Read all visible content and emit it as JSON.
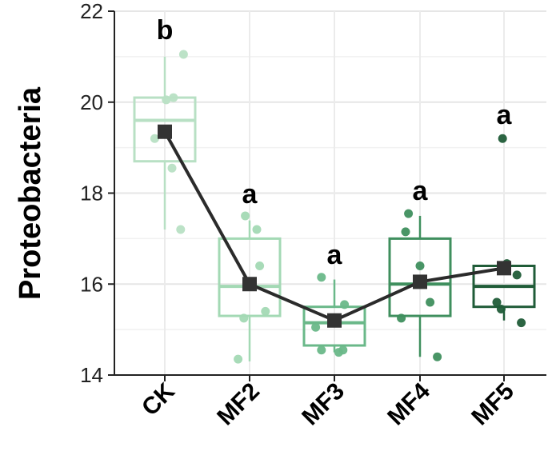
{
  "chart_data": {
    "type": "box",
    "ylabel": "Proteobacteria",
    "xlabel": "",
    "ylim": [
      14,
      22
    ],
    "yticks": [
      14,
      16,
      18,
      20,
      22
    ],
    "grid": true,
    "categories": [
      "CK",
      "MF2",
      "MF3",
      "MF4",
      "MF5"
    ],
    "colors": [
      "#b8e0c4",
      "#a3d9b4",
      "#6ab889",
      "#3f8f5e",
      "#205c38"
    ],
    "significance": [
      "b",
      "a",
      "a",
      "a",
      "a"
    ],
    "boxes": [
      {
        "category": "CK",
        "whisker_low": 17.2,
        "q1": 18.7,
        "median": 19.6,
        "q3": 20.1,
        "whisker_high": 21.0
      },
      {
        "category": "MF2",
        "whisker_low": 14.3,
        "q1": 15.3,
        "median": 15.95,
        "q3": 17.0,
        "whisker_high": 17.4
      },
      {
        "category": "MF3",
        "whisker_low": 14.5,
        "q1": 14.65,
        "median": 15.15,
        "q3": 15.5,
        "whisker_high": 16.1
      },
      {
        "category": "MF4",
        "whisker_low": 14.4,
        "q1": 15.3,
        "median": 16.0,
        "q3": 17.0,
        "whisker_high": 17.5
      },
      {
        "category": "MF5",
        "whisker_low": 15.2,
        "q1": 15.5,
        "median": 15.95,
        "q3": 16.4,
        "whisker_high": 16.4
      }
    ],
    "points": [
      [
        21.05,
        20.1,
        20.05,
        19.2,
        18.55,
        17.2
      ],
      [
        17.5,
        17.2,
        16.4,
        15.4,
        15.25,
        14.35
      ],
      [
        16.15,
        15.55,
        15.05,
        14.55,
        14.55,
        14.5
      ],
      [
        17.55,
        17.15,
        16.4,
        15.6,
        15.25,
        14.4
      ],
      [
        19.2,
        16.45,
        16.2,
        15.6,
        15.45,
        15.15
      ]
    ],
    "means": [
      19.35,
      16.0,
      15.2,
      16.05,
      16.35
    ]
  }
}
